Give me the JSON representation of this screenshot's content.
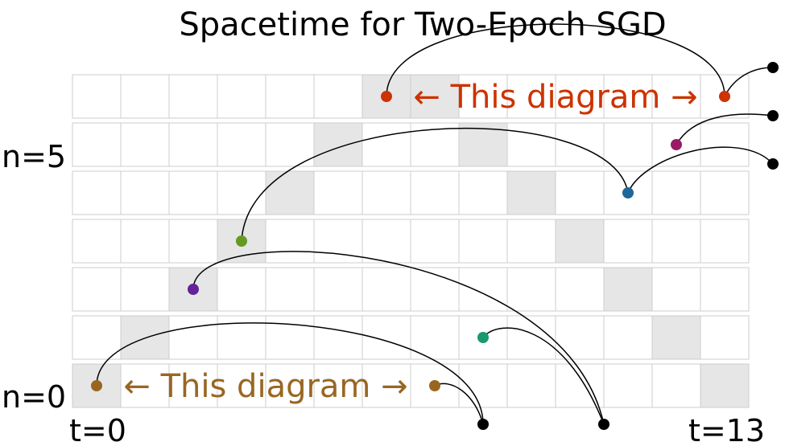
{
  "title": "Spacetime for Two-Epoch SGD",
  "labels": {
    "n_top": "n=5",
    "n_bottom": "n=0",
    "t_start": "t=0",
    "t_end": "t=13"
  },
  "annotations": [
    {
      "text": "← This diagram →",
      "color": "#cc3300"
    },
    {
      "text": "← This diagram →",
      "color": "#996622"
    }
  ],
  "grid": {
    "rows": 7,
    "cols": 14,
    "shaded": [
      [
        0,
        0
      ],
      [
        1,
        1
      ],
      [
        2,
        2
      ],
      [
        3,
        3
      ],
      [
        4,
        4
      ],
      [
        5,
        5
      ],
      [
        6,
        6
      ],
      [
        7,
        6
      ],
      [
        8,
        5
      ],
      [
        9,
        4
      ],
      [
        10,
        3
      ],
      [
        11,
        2
      ],
      [
        12,
        1
      ],
      [
        13,
        0
      ]
    ],
    "colors": {
      "cell": "#ffffff",
      "shaded": "#e6e6e6",
      "border": "#cccccc"
    }
  },
  "nodes": [
    {
      "name": "node-t0-n0",
      "t": 0,
      "n": 0,
      "color": "#996622"
    },
    {
      "name": "node-t7-n0",
      "t": 7,
      "n": 0,
      "color": "#996622"
    },
    {
      "name": "node-t8-n1",
      "t": 8,
      "n": 1,
      "color": "#1a9970"
    },
    {
      "name": "node-t2-n2",
      "t": 2,
      "n": 2,
      "color": "#662299"
    },
    {
      "name": "node-t3-n3",
      "t": 3,
      "n": 3,
      "color": "#669922"
    },
    {
      "name": "node-t11-n4",
      "t": 11,
      "n": 4,
      "color": "#1f6699"
    },
    {
      "name": "node-t12-n5",
      "t": 12,
      "n": 5,
      "color": "#991a66"
    },
    {
      "name": "node-t6-n6",
      "t": 6,
      "n": 6,
      "color": "#cc3300"
    },
    {
      "name": "node-t13-n6",
      "t": 13,
      "n": 6,
      "color": "#cc3300"
    }
  ]
}
